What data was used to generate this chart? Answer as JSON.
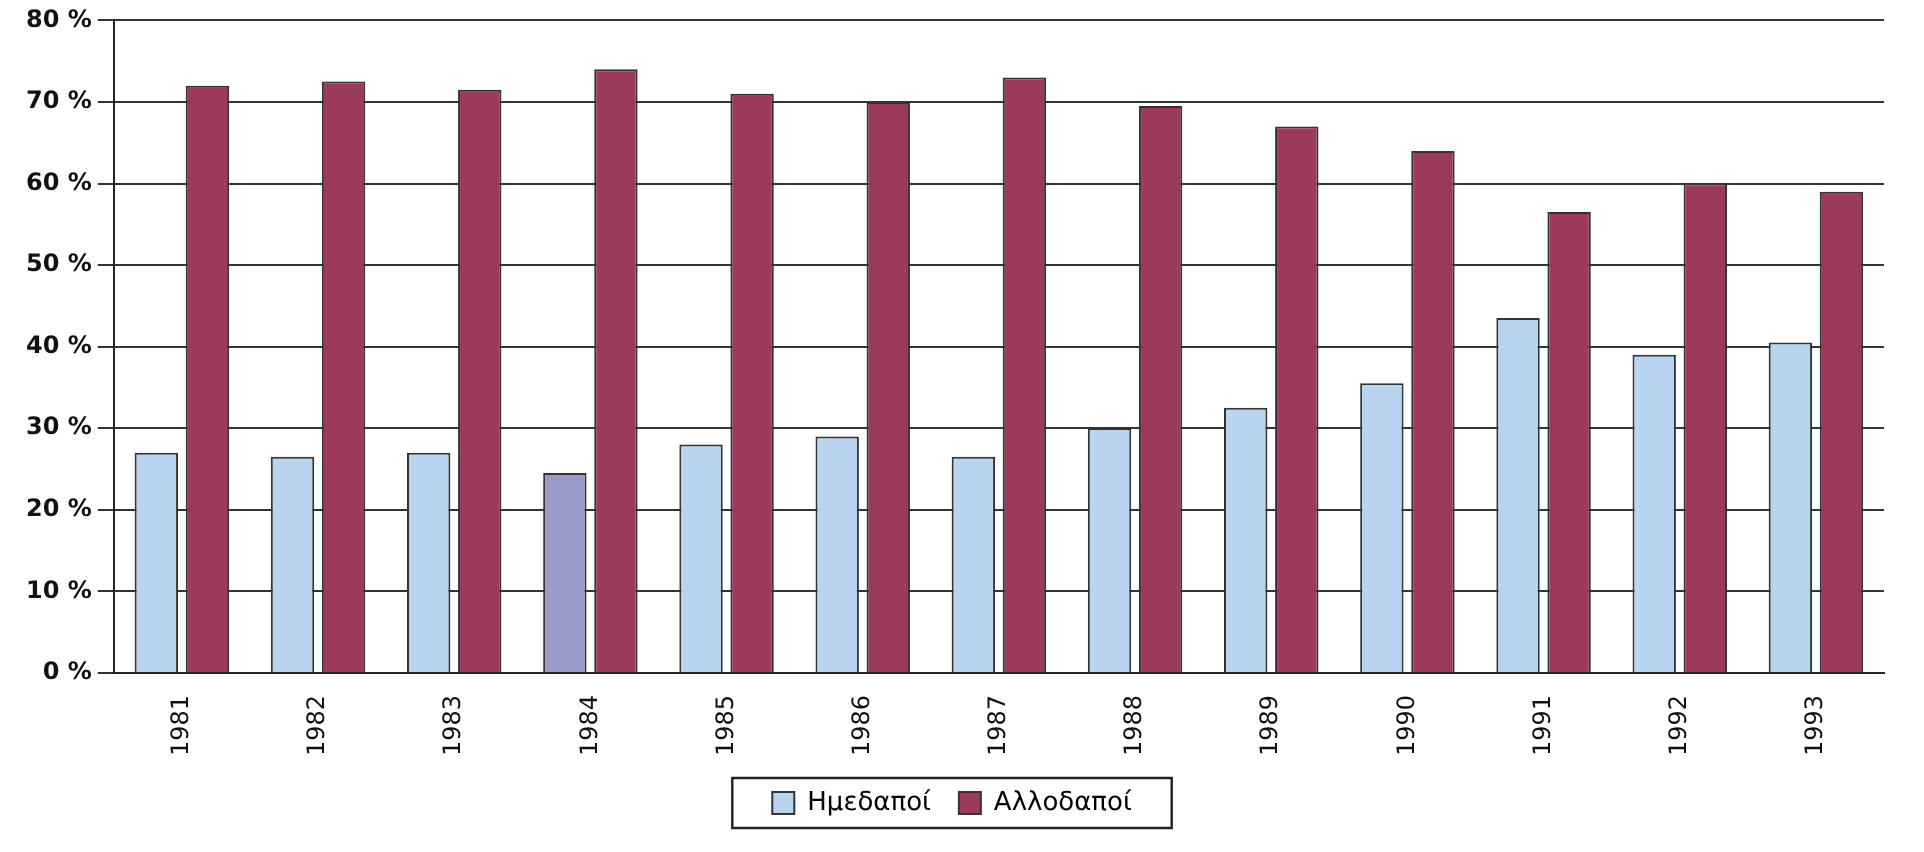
{
  "chart_data": {
    "type": "bar",
    "categories": [
      "1981",
      "1982",
      "1983",
      "1984",
      "1985",
      "1986",
      "1987",
      "1988",
      "1989",
      "1990",
      "1991",
      "1992",
      "1993"
    ],
    "series": [
      {
        "name": "Ημεδαποί",
        "color": "#b8d4f0",
        "colors": [
          "#b8d4f0",
          "#b8d4f0",
          "#b8d4f0",
          "#9a9ac8",
          "#b8d4f0",
          "#b8d4f0",
          "#b8d4f0",
          "#b8d4f0",
          "#b8d4f0",
          "#b8d4f0",
          "#b8d4f0",
          "#b8d4f0",
          "#b8d4f0"
        ],
        "values": [
          27,
          26.5,
          27,
          24.5,
          28,
          29,
          26.5,
          30,
          32.5,
          35.5,
          43.5,
          39,
          40.5
        ]
      },
      {
        "name": "Αλλοδαποί",
        "color": "#9c3a5c",
        "values": [
          72,
          72.5,
          71.5,
          74,
          71,
          70,
          73,
          69.5,
          67,
          64,
          56.5,
          60,
          59
        ]
      }
    ],
    "ylim": [
      0,
      80
    ],
    "yticks": [
      {
        "value": 0,
        "label": "0 %"
      },
      {
        "value": 10,
        "label": "10 %"
      },
      {
        "value": 20,
        "label": "20 %"
      },
      {
        "value": 30,
        "label": "30 %"
      },
      {
        "value": 40,
        "label": "40 %"
      },
      {
        "value": 50,
        "label": "50 %"
      },
      {
        "value": 60,
        "label": "60 %"
      },
      {
        "value": 70,
        "label": "70 %"
      },
      {
        "value": 80,
        "label": "80 %"
      }
    ],
    "grid": "y",
    "legend": "bottom"
  }
}
